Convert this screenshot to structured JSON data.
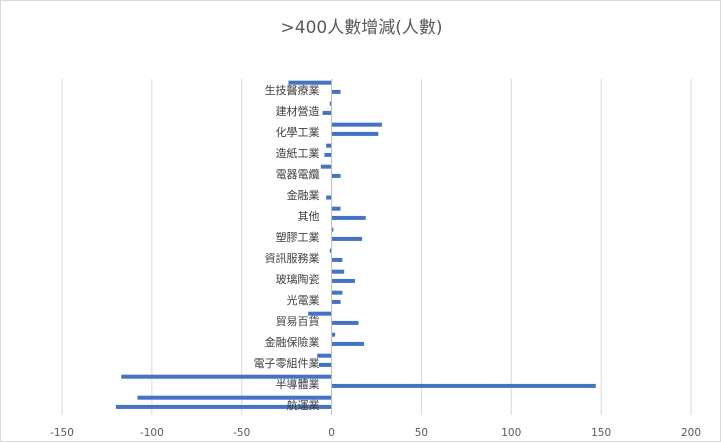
{
  "chart_data": {
    "type": "bar",
    "orientation": "horizontal",
    "title": ">400人數增減(人數)",
    "xlim": [
      -150,
      200
    ],
    "xticks": [
      -150,
      -100,
      -50,
      0,
      50,
      100,
      150,
      200
    ],
    "grid": true,
    "categories": [
      "生技醫療業",
      "建材營造",
      "化學工業",
      "造紙工業",
      "電器電纜",
      "金融業",
      "其他",
      "塑膠工業",
      "資訊服務業",
      "玻璃陶瓷",
      "光電業",
      "貿易百貨",
      "金融保險業",
      "電子零組件業",
      "半導體業",
      "航運業"
    ],
    "bars": [
      {
        "category": "生技醫療業",
        "values": [
          -24,
          5
        ]
      },
      {
        "category": "建材營造",
        "values": [
          -1,
          -5
        ]
      },
      {
        "category": "化學工業",
        "values": [
          28,
          26
        ]
      },
      {
        "category": "造紙工業",
        "values": [
          -3,
          -4
        ]
      },
      {
        "category": "電器電纜",
        "values": [
          -6,
          5
        ]
      },
      {
        "category": "金融業",
        "values": [
          -3
        ]
      },
      {
        "category": "其他",
        "values": [
          5,
          19
        ]
      },
      {
        "category": "塑膠工業",
        "values": [
          1,
          17
        ]
      },
      {
        "category": "資訊服務業",
        "values": [
          -1,
          6
        ]
      },
      {
        "category": "玻璃陶瓷",
        "values": [
          7,
          13
        ]
      },
      {
        "category": "光電業",
        "values": [
          6,
          5
        ]
      },
      {
        "category": "貿易百貨",
        "values": [
          -13,
          15
        ]
      },
      {
        "category": "金融保險業",
        "values": [
          2,
          18
        ]
      },
      {
        "category": "電子零組件業",
        "values": [
          -8,
          -7
        ]
      },
      {
        "category": "半導體業",
        "values": [
          -117,
          147
        ]
      },
      {
        "category": "航運業",
        "values": [
          -108,
          -120
        ]
      }
    ],
    "bar_color": "#4472c4",
    "grid_color": "#d9d9d9"
  }
}
